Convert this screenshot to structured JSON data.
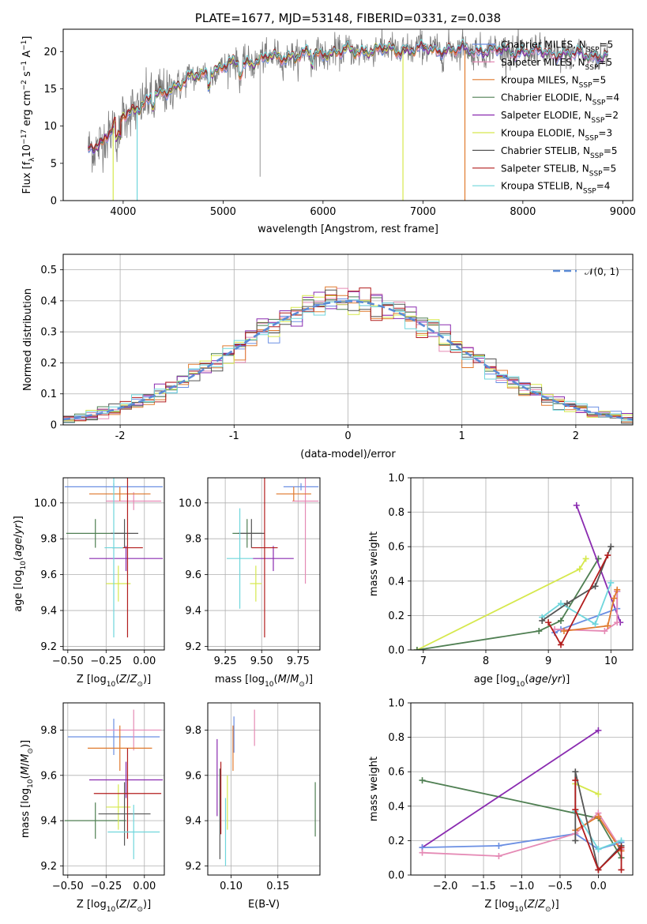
{
  "colors": {
    "chabrier_miles": "#6b8fe3",
    "salpeter_miles": "#e58ab5",
    "kroupa_miles": "#e07a2e",
    "chabrier_elodie": "#4f7f52",
    "salpeter_elodie": "#8a2bb0",
    "kroupa_elodie": "#d6e84d",
    "chabrier_stelib": "#555555",
    "salpeter_stelib": "#b21d1d",
    "kroupa_stelib": "#6fd6dc"
  },
  "chart_data": [
    {
      "id": "spectrum",
      "type": "line",
      "title": "PLATE=1677, MJD=53148, FIBERID=0331, z=0.038",
      "xlabel": "wavelength [Angstrom, rest frame]",
      "ylabel": "Flux [f_λ10^-17 erg cm^-2 s^-1 A^-1]",
      "xlim": [
        3400,
        9100
      ],
      "ylim": [
        0,
        23
      ],
      "xticks": [
        4000,
        5000,
        6000,
        7000,
        8000,
        9000
      ],
      "yticks": [
        0,
        5,
        10,
        15,
        20
      ],
      "legend": "top-right",
      "series": [
        {
          "name": "Chabrier MILES, N_SSP=5",
          "color_key": "chabrier_miles"
        },
        {
          "name": "Salpeter MILES, N_SSP=5",
          "color_key": "salpeter_miles"
        },
        {
          "name": "Kroupa MILES, N_SSP=5",
          "color_key": "kroupa_miles"
        },
        {
          "name": "Chabrier ELODIE, N_SSP=4",
          "color_key": "chabrier_elodie"
        },
        {
          "name": "Salpeter ELODIE, N_SSP=2",
          "color_key": "salpeter_elodie"
        },
        {
          "name": "Kroupa ELODIE, N_SSP=3",
          "color_key": "kroupa_elodie"
        },
        {
          "name": "Chabrier STELIB, N_SSP=5",
          "color_key": "chabrier_stelib"
        },
        {
          "name": "Salpeter STELIB, N_SSP=5",
          "color_key": "salpeter_stelib"
        },
        {
          "name": "Kroupa STELIB, N_SSP=4",
          "color_key": "kroupa_stelib"
        }
      ],
      "continuum": [
        [
          3650,
          7
        ],
        [
          3800,
          8
        ],
        [
          4000,
          11.5
        ],
        [
          4200,
          13
        ],
        [
          4400,
          14.5
        ],
        [
          4600,
          16
        ],
        [
          4800,
          17
        ],
        [
          5000,
          18
        ],
        [
          5200,
          18.5
        ],
        [
          5500,
          19.2
        ],
        [
          6000,
          19.8
        ],
        [
          6500,
          20.2
        ],
        [
          7000,
          20.3
        ],
        [
          7500,
          20.2
        ],
        [
          8000,
          20
        ],
        [
          8500,
          19.6
        ],
        [
          8850,
          19.4
        ]
      ],
      "dropouts": [
        {
          "series": "Kroupa ELODIE, N_SSP=3",
          "x_min": 3650,
          "x_max": 3900
        },
        {
          "series": "Kroupa STELIB, N_SSP=4",
          "x_min": 3650,
          "x_max": 4140
        },
        {
          "series": "Kroupa ELODIE, N_SSP=3",
          "x_min": 6800,
          "x_max": 9100
        },
        {
          "series": "Kroupa MILES, N_SSP=5",
          "x_min": 7420,
          "x_max": 9100
        }
      ]
    },
    {
      "id": "residuals",
      "type": "line",
      "xlabel": "(data-model)/error",
      "ylabel": "Normed distribution",
      "xlim": [
        -2.5,
        2.5
      ],
      "ylim": [
        0,
        0.55
      ],
      "xticks": [
        -2,
        -1,
        0,
        1,
        2
      ],
      "yticks": [
        0.0,
        0.1,
        0.2,
        0.3,
        0.4,
        0.5
      ],
      "legend": "top-right",
      "reference": {
        "name": "𝒩(0, 1)",
        "mean": 0,
        "sigma": 1
      },
      "histogram_bins": 50,
      "series": [
        {
          "color_key": "chabrier_miles"
        },
        {
          "color_key": "salpeter_miles"
        },
        {
          "color_key": "kroupa_miles"
        },
        {
          "color_key": "chabrier_elodie"
        },
        {
          "color_key": "salpeter_elodie"
        },
        {
          "color_key": "kroupa_elodie"
        },
        {
          "color_key": "chabrier_stelib"
        },
        {
          "color_key": "salpeter_stelib"
        },
        {
          "color_key": "kroupa_stelib"
        }
      ]
    },
    {
      "id": "age_vs_Z",
      "type": "scatter",
      "xlabel": "Z [log10(Z/Z⊙)]",
      "ylabel": "age [log10(age/yr)]",
      "xlim": [
        -0.53,
        0.13
      ],
      "ylim": [
        9.18,
        10.14
      ],
      "xticks": [
        -0.5,
        -0.25,
        0.0
      ],
      "xtick_labels": [
        "−0.50",
        "−0.25",
        "0.00"
      ],
      "yticks": [
        9.2,
        9.4,
        9.6,
        9.8,
        10.0
      ],
      "ytick_labels": [
        "9.2",
        "9.4",
        "9.6",
        "9.8",
        "10.0"
      ],
      "points": [
        {
          "color_key": "chabrier_miles",
          "x": -0.2,
          "xerr": 0.32,
          "y": 10.09,
          "yerr": 0.02
        },
        {
          "color_key": "salpeter_miles",
          "x": -0.07,
          "xerr": 0.18,
          "y": 10.01,
          "yerr": 0.05
        },
        {
          "color_key": "kroupa_miles",
          "x": -0.16,
          "xerr": 0.2,
          "y": 10.05,
          "yerr": 0.04
        },
        {
          "color_key": "chabrier_elodie",
          "x": -0.32,
          "xerr": 0.19,
          "y": 9.83,
          "yerr": 0.08
        },
        {
          "color_key": "salpeter_elodie",
          "x": -0.12,
          "xerr": 0.24,
          "y": 9.69,
          "yerr": 0.07
        },
        {
          "color_key": "kroupa_elodie",
          "x": -0.17,
          "xerr": 0.08,
          "y": 9.55,
          "yerr": 0.1
        },
        {
          "color_key": "chabrier_stelib",
          "x": -0.13,
          "xerr": 0.09,
          "y": 9.83,
          "yerr": 0.08
        },
        {
          "color_key": "salpeter_stelib",
          "x": -0.11,
          "xerr": 0.1,
          "y": 9.75,
          "yerr": 0.5
        },
        {
          "color_key": "kroupa_stelib",
          "x": -0.2,
          "xerr": 0.06,
          "y": 9.75,
          "yerr": 0.5
        }
      ]
    },
    {
      "id": "age_vs_mass",
      "type": "scatter",
      "xlabel": "mass [log10(M/M⊙)]",
      "ylabel": "",
      "xlim": [
        9.13,
        9.9
      ],
      "ylim": [
        9.18,
        10.14
      ],
      "xticks": [
        9.25,
        9.5,
        9.75
      ],
      "xtick_labels": [
        "9.25",
        "9.50",
        "9.75"
      ],
      "yticks": [
        9.2,
        9.4,
        9.6,
        9.8,
        10.0
      ],
      "ytick_labels": [
        "9.2",
        "9.4",
        "9.6",
        "9.8",
        "10.0"
      ],
      "points": [
        {
          "color_key": "chabrier_miles",
          "x": 9.77,
          "xerr": 0.12,
          "y": 10.09,
          "yerr": 0.02
        },
        {
          "color_key": "salpeter_miles",
          "x": 9.8,
          "xerr": 0.09,
          "y": 10.01,
          "yerr": 0.46
        },
        {
          "color_key": "kroupa_miles",
          "x": 9.72,
          "xerr": 0.12,
          "y": 10.05,
          "yerr": 0.04
        },
        {
          "color_key": "chabrier_elodie",
          "x": 9.4,
          "xerr": 0.1,
          "y": 9.83,
          "yerr": 0.08
        },
        {
          "color_key": "salpeter_elodie",
          "x": 9.58,
          "xerr": 0.14,
          "y": 9.69,
          "yerr": 0.07
        },
        {
          "color_key": "kroupa_elodie",
          "x": 9.46,
          "xerr": 0.04,
          "y": 9.55,
          "yerr": 0.1
        },
        {
          "color_key": "chabrier_stelib",
          "x": 9.43,
          "xerr": 0.09,
          "y": 9.83,
          "yerr": 0.08
        },
        {
          "color_key": "salpeter_stelib",
          "x": 9.52,
          "xerr": 0.09,
          "y": 9.75,
          "yerr": 0.5
        },
        {
          "color_key": "kroupa_stelib",
          "x": 9.35,
          "xerr": 0.09,
          "y": 9.69,
          "yerr": 0.28
        }
      ]
    },
    {
      "id": "mass_weight_vs_age",
      "type": "line",
      "xlabel": "age [log10(age/yr)]",
      "ylabel": "mass weight",
      "xlim": [
        6.8,
        10.35
      ],
      "ylim": [
        0,
        1
      ],
      "xticks": [
        7,
        8,
        9,
        10
      ],
      "xtick_labels": [
        "7",
        "8",
        "9",
        "10"
      ],
      "yticks": [
        0.0,
        0.2,
        0.4,
        0.6,
        0.8,
        1.0
      ],
      "ytick_labels": [
        "0.0",
        "0.2",
        "0.4",
        "0.6",
        "0.8",
        "1.0"
      ],
      "series": [
        {
          "color_key": "kroupa_elodie",
          "x": [
            6.9,
            9.5,
            9.6
          ],
          "y": [
            0.0,
            0.47,
            0.53
          ]
        },
        {
          "color_key": "chabrier_elodie",
          "x": [
            6.9,
            8.85,
            9.2,
            9.8
          ],
          "y": [
            0.0,
            0.11,
            0.17,
            0.53
          ]
        },
        {
          "color_key": "salpeter_elodie",
          "x": [
            9.45,
            10.15
          ],
          "y": [
            0.84,
            0.16
          ]
        },
        {
          "color_key": "chabrier_miles",
          "x": [
            9.1,
            9.2,
            10.1,
            10.1
          ],
          "y": [
            0.1,
            0.12,
            0.24,
            0.34
          ]
        },
        {
          "color_key": "salpeter_miles",
          "x": [
            9.1,
            9.9,
            10.1,
            10.1
          ],
          "y": [
            0.12,
            0.11,
            0.16,
            0.34
          ]
        },
        {
          "color_key": "kroupa_miles",
          "x": [
            9.25,
            9.95,
            10.05,
            10.1
          ],
          "y": [
            0.11,
            0.14,
            0.3,
            0.35
          ]
        },
        {
          "color_key": "kroupa_stelib",
          "x": [
            8.9,
            9.2,
            9.75,
            10.0
          ],
          "y": [
            0.19,
            0.27,
            0.15,
            0.39
          ]
        },
        {
          "color_key": "chabrier_stelib",
          "x": [
            8.9,
            9.3,
            9.75,
            10.0
          ],
          "y": [
            0.17,
            0.27,
            0.37,
            0.6
          ]
        },
        {
          "color_key": "salpeter_stelib",
          "x": [
            9.0,
            9.2,
            9.95
          ],
          "y": [
            0.16,
            0.03,
            0.55
          ]
        }
      ]
    },
    {
      "id": "mass_vs_Z",
      "type": "scatter",
      "xlabel": "Z [log10(Z/Z⊙)]",
      "ylabel": "mass [log10(M/M⊙)]",
      "xlim": [
        -0.53,
        0.13
      ],
      "ylim": [
        9.16,
        9.92
      ],
      "xticks": [
        -0.5,
        -0.25,
        0.0
      ],
      "xtick_labels": [
        "−0.50",
        "−0.25",
        "0.00"
      ],
      "yticks": [
        9.2,
        9.4,
        9.6,
        9.8
      ],
      "ytick_labels": [
        "9.2",
        "9.4",
        "9.6",
        "9.8"
      ],
      "points": [
        {
          "color_key": "chabrier_miles",
          "x": -0.2,
          "xerr": 0.3,
          "y": 9.77,
          "yerr": 0.08
        },
        {
          "color_key": "salpeter_miles",
          "x": -0.07,
          "xerr": 0.18,
          "y": 9.8,
          "yerr": 0.09
        },
        {
          "color_key": "kroupa_miles",
          "x": -0.16,
          "xerr": 0.21,
          "y": 9.72,
          "yerr": 0.1
        },
        {
          "color_key": "chabrier_elodie",
          "x": -0.32,
          "xerr": 0.2,
          "y": 9.4,
          "yerr": 0.08
        },
        {
          "color_key": "salpeter_elodie",
          "x": -0.12,
          "xerr": 0.24,
          "y": 9.58,
          "yerr": 0.08
        },
        {
          "color_key": "kroupa_elodie",
          "x": -0.17,
          "xerr": 0.08,
          "y": 9.46,
          "yerr": 0.1
        },
        {
          "color_key": "chabrier_stelib",
          "x": -0.13,
          "xerr": 0.17,
          "y": 9.43,
          "yerr": 0.14
        },
        {
          "color_key": "salpeter_stelib",
          "x": -0.11,
          "xerr": 0.22,
          "y": 9.52,
          "yerr": 0.2
        },
        {
          "color_key": "kroupa_stelib",
          "x": -0.07,
          "xerr": 0.17,
          "y": 9.35,
          "yerr": 0.12
        }
      ]
    },
    {
      "id": "mass_vs_ebv",
      "type": "scatter",
      "xlabel": "E(B-V)",
      "ylabel": "",
      "xlim": [
        0.075,
        0.195
      ],
      "ylim": [
        9.16,
        9.92
      ],
      "xticks": [
        0.1,
        0.15
      ],
      "xtick_labels": [
        "0.10",
        "0.15"
      ],
      "yticks": [
        9.2,
        9.4,
        9.6,
        9.8
      ],
      "ytick_labels": [
        "9.2",
        "9.4",
        "9.6",
        "9.8"
      ],
      "points": [
        {
          "color_key": "chabrier_miles",
          "x": 0.103,
          "y": 9.78,
          "yerr": 0.08
        },
        {
          "color_key": "salpeter_miles",
          "x": 0.125,
          "y": 9.81,
          "yerr": 0.08
        },
        {
          "color_key": "kroupa_miles",
          "x": 0.102,
          "y": 9.72,
          "yerr": 0.1
        },
        {
          "color_key": "chabrier_elodie",
          "x": 0.19,
          "y": 9.45,
          "yerr": 0.12
        },
        {
          "color_key": "salpeter_elodie",
          "x": 0.085,
          "y": 9.59,
          "yerr": 0.17
        },
        {
          "color_key": "kroupa_elodie",
          "x": 0.096,
          "y": 9.48,
          "yerr": 0.12
        },
        {
          "color_key": "chabrier_stelib",
          "x": 0.088,
          "y": 9.43,
          "yerr": 0.2
        },
        {
          "color_key": "salpeter_stelib",
          "x": 0.089,
          "y": 9.5,
          "yerr": 0.16
        },
        {
          "color_key": "kroupa_stelib",
          "x": 0.094,
          "y": 9.35,
          "yerr": 0.15
        }
      ]
    },
    {
      "id": "mass_weight_vs_Z",
      "type": "line",
      "xlabel": "Z [log10(Z/Z⊙)]",
      "ylabel": "mass weight",
      "xlim": [
        -2.45,
        0.45
      ],
      "ylim": [
        0,
        1
      ],
      "xticks": [
        -2.0,
        -1.5,
        -1.0,
        -0.5,
        0.0
      ],
      "xtick_labels": [
        "−2.0",
        "−1.5",
        "−1.0",
        "−0.5",
        "0.0"
      ],
      "yticks": [
        0.0,
        0.2,
        0.4,
        0.6,
        0.8,
        1.0
      ],
      "ytick_labels": [
        "0.0",
        "0.2",
        "0.4",
        "0.6",
        "0.8",
        "1.0"
      ],
      "series": [
        {
          "color_key": "chabrier_elodie",
          "x": [
            -2.3,
            0.0,
            0.3
          ],
          "y": [
            0.55,
            0.33,
            0.1
          ]
        },
        {
          "color_key": "salpeter_elodie",
          "x": [
            -2.3,
            0.0
          ],
          "y": [
            0.16,
            0.84
          ]
        },
        {
          "color_key": "chabrier_miles",
          "x": [
            -2.3,
            -1.3,
            -0.3,
            0.0,
            0.3
          ],
          "y": [
            0.16,
            0.17,
            0.24,
            0.15,
            0.19
          ]
        },
        {
          "color_key": "salpeter_miles",
          "x": [
            -2.3,
            -1.3,
            -0.3,
            0.0,
            0.3
          ],
          "y": [
            0.13,
            0.11,
            0.24,
            0.36,
            0.15
          ]
        },
        {
          "color_key": "kroupa_miles",
          "x": [
            -0.3,
            0.0,
            0.3
          ],
          "y": [
            0.26,
            0.34,
            0.14
          ]
        },
        {
          "color_key": "kroupa_elodie",
          "x": [
            -0.3,
            0.0
          ],
          "y": [
            0.53,
            0.47
          ]
        },
        {
          "color_key": "kroupa_stelib",
          "x": [
            -0.3,
            0.0,
            0.3
          ],
          "y": [
            0.37,
            0.15,
            0.2
          ]
        },
        {
          "color_key": "chabrier_stelib",
          "x": [
            -0.3,
            -0.3,
            0.0,
            0.3
          ],
          "y": [
            0.2,
            0.6,
            0.03,
            0.17
          ]
        },
        {
          "color_key": "salpeter_stelib",
          "x": [
            -0.3,
            -0.3,
            0.0,
            0.3,
            0.3
          ],
          "y": [
            0.55,
            0.38,
            0.03,
            0.16,
            0.03
          ]
        }
      ]
    }
  ]
}
